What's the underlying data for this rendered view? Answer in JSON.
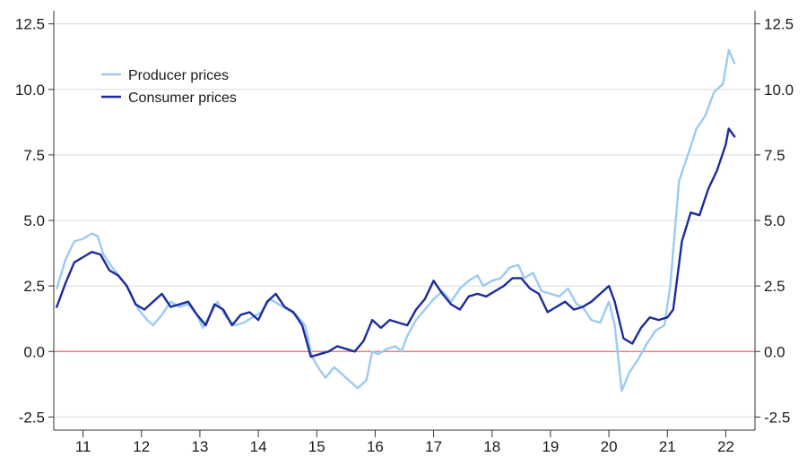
{
  "chart_data": {
    "type": "line",
    "title": "",
    "xlabel": "",
    "ylabel": "",
    "x_tick_labels": [
      "11",
      "12",
      "13",
      "14",
      "15",
      "16",
      "17",
      "18",
      "19",
      "20",
      "21",
      "22"
    ],
    "y_tick_labels": [
      "12.5",
      "10.0",
      "7.5",
      "5.0",
      "2.5",
      "0.0",
      "-2.5"
    ],
    "y_ticks": [
      12.5,
      10.0,
      7.5,
      5.0,
      2.5,
      0.0,
      -2.5
    ],
    "ylim": [
      -3,
      13
    ],
    "xlim": [
      2010.5,
      2022.5
    ],
    "grid": true,
    "zero_line": true,
    "legend_position": "top-left",
    "colors": {
      "producer": "#9ccaf0",
      "consumer": "#1c2a9c",
      "zero_line": "#e8676b",
      "grid": "#dcdcdc",
      "axis": "#333333"
    },
    "series": [
      {
        "name": "Producer prices",
        "points": [
          [
            2010.55,
            2.4
          ],
          [
            2010.7,
            3.5
          ],
          [
            2010.85,
            4.2
          ],
          [
            2011.0,
            4.3
          ],
          [
            2011.15,
            4.5
          ],
          [
            2011.25,
            4.4
          ],
          [
            2011.35,
            3.7
          ],
          [
            2011.5,
            3.2
          ],
          [
            2011.65,
            2.8
          ],
          [
            2011.8,
            2.3
          ],
          [
            2011.95,
            1.6
          ],
          [
            2012.1,
            1.2
          ],
          [
            2012.2,
            1.0
          ],
          [
            2012.35,
            1.4
          ],
          [
            2012.5,
            1.9
          ],
          [
            2012.65,
            1.7
          ],
          [
            2012.8,
            1.8
          ],
          [
            2012.95,
            1.4
          ],
          [
            2013.05,
            0.9
          ],
          [
            2013.2,
            1.5
          ],
          [
            2013.3,
            1.9
          ],
          [
            2013.45,
            1.3
          ],
          [
            2013.6,
            1.0
          ],
          [
            2013.75,
            1.1
          ],
          [
            2013.9,
            1.3
          ],
          [
            2014.05,
            1.5
          ],
          [
            2014.2,
            2.0
          ],
          [
            2014.35,
            1.8
          ],
          [
            2014.5,
            1.6
          ],
          [
            2014.65,
            1.4
          ],
          [
            2014.8,
            1.0
          ],
          [
            2014.92,
            -0.2
          ],
          [
            2015.05,
            -0.7
          ],
          [
            2015.15,
            -1.0
          ],
          [
            2015.3,
            -0.6
          ],
          [
            2015.45,
            -0.9
          ],
          [
            2015.6,
            -1.2
          ],
          [
            2015.7,
            -1.4
          ],
          [
            2015.85,
            -1.1
          ],
          [
            2015.95,
            0.0
          ],
          [
            2016.05,
            -0.1
          ],
          [
            2016.2,
            0.1
          ],
          [
            2016.35,
            0.2
          ],
          [
            2016.45,
            0.0
          ],
          [
            2016.55,
            0.6
          ],
          [
            2016.7,
            1.2
          ],
          [
            2016.85,
            1.6
          ],
          [
            2017.0,
            2.0
          ],
          [
            2017.15,
            2.3
          ],
          [
            2017.3,
            1.9
          ],
          [
            2017.45,
            2.4
          ],
          [
            2017.6,
            2.7
          ],
          [
            2017.75,
            2.9
          ],
          [
            2017.85,
            2.5
          ],
          [
            2018.0,
            2.7
          ],
          [
            2018.15,
            2.8
          ],
          [
            2018.3,
            3.2
          ],
          [
            2018.45,
            3.3
          ],
          [
            2018.55,
            2.8
          ],
          [
            2018.7,
            3.0
          ],
          [
            2018.85,
            2.3
          ],
          [
            2019.0,
            2.2
          ],
          [
            2019.15,
            2.1
          ],
          [
            2019.3,
            2.4
          ],
          [
            2019.45,
            1.8
          ],
          [
            2019.55,
            1.7
          ],
          [
            2019.7,
            1.2
          ],
          [
            2019.85,
            1.1
          ],
          [
            2020.0,
            1.9
          ],
          [
            2020.1,
            1.0
          ],
          [
            2020.22,
            -1.5
          ],
          [
            2020.35,
            -0.8
          ],
          [
            2020.5,
            -0.3
          ],
          [
            2020.65,
            0.3
          ],
          [
            2020.8,
            0.8
          ],
          [
            2020.95,
            1.0
          ],
          [
            2021.05,
            2.5
          ],
          [
            2021.2,
            6.5
          ],
          [
            2021.35,
            7.5
          ],
          [
            2021.5,
            8.5
          ],
          [
            2021.65,
            9.0
          ],
          [
            2021.8,
            9.9
          ],
          [
            2021.95,
            10.2
          ],
          [
            2022.05,
            11.5
          ],
          [
            2022.15,
            11.0
          ]
        ]
      },
      {
        "name": "Consumer prices",
        "points": [
          [
            2010.55,
            1.7
          ],
          [
            2010.7,
            2.6
          ],
          [
            2010.85,
            3.4
          ],
          [
            2011.0,
            3.6
          ],
          [
            2011.15,
            3.8
          ],
          [
            2011.3,
            3.7
          ],
          [
            2011.45,
            3.1
          ],
          [
            2011.6,
            2.9
          ],
          [
            2011.75,
            2.5
          ],
          [
            2011.9,
            1.8
          ],
          [
            2012.05,
            1.6
          ],
          [
            2012.2,
            1.9
          ],
          [
            2012.35,
            2.2
          ],
          [
            2012.5,
            1.7
          ],
          [
            2012.65,
            1.8
          ],
          [
            2012.8,
            1.9
          ],
          [
            2012.95,
            1.4
          ],
          [
            2013.1,
            1.0
          ],
          [
            2013.25,
            1.8
          ],
          [
            2013.4,
            1.6
          ],
          [
            2013.55,
            1.0
          ],
          [
            2013.7,
            1.4
          ],
          [
            2013.85,
            1.5
          ],
          [
            2014.0,
            1.2
          ],
          [
            2014.15,
            1.9
          ],
          [
            2014.3,
            2.2
          ],
          [
            2014.45,
            1.7
          ],
          [
            2014.6,
            1.5
          ],
          [
            2014.75,
            1.0
          ],
          [
            2014.9,
            -0.2
          ],
          [
            2015.05,
            -0.1
          ],
          [
            2015.2,
            0.0
          ],
          [
            2015.35,
            0.2
          ],
          [
            2015.5,
            0.1
          ],
          [
            2015.65,
            0.0
          ],
          [
            2015.8,
            0.4
          ],
          [
            2015.95,
            1.2
          ],
          [
            2016.1,
            0.9
          ],
          [
            2016.25,
            1.2
          ],
          [
            2016.4,
            1.1
          ],
          [
            2016.55,
            1.0
          ],
          [
            2016.7,
            1.6
          ],
          [
            2016.85,
            2.0
          ],
          [
            2017.0,
            2.7
          ],
          [
            2017.15,
            2.2
          ],
          [
            2017.3,
            1.8
          ],
          [
            2017.45,
            1.6
          ],
          [
            2017.6,
            2.1
          ],
          [
            2017.75,
            2.2
          ],
          [
            2017.9,
            2.1
          ],
          [
            2018.05,
            2.3
          ],
          [
            2018.2,
            2.5
          ],
          [
            2018.35,
            2.8
          ],
          [
            2018.5,
            2.8
          ],
          [
            2018.65,
            2.4
          ],
          [
            2018.8,
            2.2
          ],
          [
            2018.95,
            1.5
          ],
          [
            2019.1,
            1.7
          ],
          [
            2019.25,
            1.9
          ],
          [
            2019.4,
            1.6
          ],
          [
            2019.55,
            1.7
          ],
          [
            2019.7,
            1.9
          ],
          [
            2019.85,
            2.2
          ],
          [
            2020.0,
            2.5
          ],
          [
            2020.1,
            1.9
          ],
          [
            2020.25,
            0.5
          ],
          [
            2020.4,
            0.3
          ],
          [
            2020.55,
            0.9
          ],
          [
            2020.7,
            1.3
          ],
          [
            2020.85,
            1.2
          ],
          [
            2021.0,
            1.3
          ],
          [
            2021.1,
            1.6
          ],
          [
            2021.25,
            4.2
          ],
          [
            2021.4,
            5.3
          ],
          [
            2021.55,
            5.2
          ],
          [
            2021.7,
            6.2
          ],
          [
            2021.85,
            6.9
          ],
          [
            2022.0,
            7.9
          ],
          [
            2022.05,
            8.5
          ],
          [
            2022.15,
            8.2
          ]
        ]
      }
    ]
  }
}
